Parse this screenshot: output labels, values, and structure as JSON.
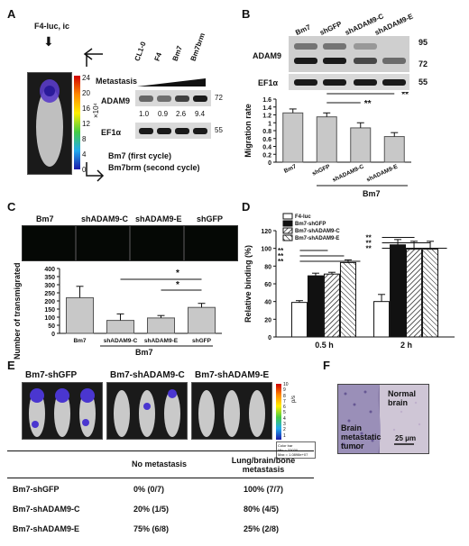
{
  "panels": {
    "A": {
      "label": "A",
      "injection": "F4-luc, ic",
      "colorbar_ticks": [
        "24",
        "20",
        "16",
        "12",
        "8",
        "4",
        "0"
      ],
      "colorbar_unit": "×10⁴",
      "lane_labels": [
        "CL1-0",
        "F4",
        "Bm7",
        "Bm7brm"
      ],
      "metastasis_label": "Metastasis",
      "blot1_label": "ADAM9",
      "blot1_kda": "72",
      "quant_values": [
        "1.0",
        "0.9",
        "2.6",
        "9.4"
      ],
      "blot2_label": "EF1α",
      "blot2_kda": "55",
      "legend_line1": "Bm7 (first cycle)",
      "legend_line2": "Bm7brm (second cycle)"
    },
    "B": {
      "label": "B",
      "lane_labels": [
        "Bm7",
        "shGFP",
        "shADAM9-C",
        "shADAM9-E"
      ],
      "blot1_label": "ADAM9",
      "blot1_kda_top": "95",
      "blot1_kda_bottom": "72",
      "blot2_label": "EF1α",
      "blot2_kda": "55",
      "sig_top": "**",
      "sig_bottom": "**",
      "group_label": "Bm7"
    },
    "C": {
      "label": "C",
      "image_labels": [
        "Bm7",
        "shADAM9-C",
        "shADAM9-E",
        "shGFP"
      ],
      "sig1": "*",
      "sig2": "*",
      "group_label": "Bm7"
    },
    "D": {
      "label": "D",
      "legend": [
        "F4-luc",
        "Bm7-shGFP",
        "Bm7-shADAM9-C",
        "Bm7-shADAM9-E"
      ],
      "sig_marks": [
        "**",
        "**",
        "**"
      ]
    },
    "E": {
      "label": "E",
      "group_titles": [
        "Bm7-shGFP",
        "Bm7-shADAM9-C",
        "Bm7-shADAM9-E"
      ],
      "colorbar_ticks": [
        "10",
        "9",
        "8",
        "7",
        "6",
        "5",
        "4",
        "3",
        "2",
        "1"
      ],
      "colorbar_unit": "p/s",
      "colorbar_note1": "Color bar",
      "colorbar_note2": "Min = 33030",
      "colorbar_note3": "Max = 1.0898e+07",
      "table_header": [
        "No metastasis",
        "Lung/brain/bone metastasis"
      ],
      "table_rows": [
        {
          "name": "Bm7-shGFP",
          "no_met": "0% (0/7)",
          "met": "100% (7/7)"
        },
        {
          "name": "Bm7-shADAM9-C",
          "no_met": "20% (1/5)",
          "met": "80% (4/5)"
        },
        {
          "name": "Bm7-shADAM9-E",
          "no_met": "75% (6/8)",
          "met": "25% (2/8)"
        }
      ]
    },
    "F": {
      "label": "F",
      "region1": "Normal brain",
      "region2": "Brain metastatic tumor",
      "scale_bar": "25 μm"
    }
  },
  "chart_data": [
    {
      "id": "B-migration",
      "type": "bar",
      "categories": [
        "Bm7",
        "shGFP",
        "shADAM9-C",
        "shADAM9-E"
      ],
      "values": [
        1.25,
        1.15,
        0.87,
        0.65
      ],
      "errors": [
        0.1,
        0.1,
        0.13,
        0.1
      ],
      "ylabel": "Migration rate",
      "ylim": [
        0,
        1.6
      ],
      "yticks": [
        "0",
        "0.2",
        "0.4",
        "0.6",
        "0.8",
        "1",
        "1.2",
        "1.4",
        "1.6"
      ],
      "bar_color": "#c8c8c8"
    },
    {
      "id": "C-transmigration",
      "type": "bar",
      "categories": [
        "Bm7",
        "shADAM9-C",
        "shADAM9-E",
        "shGFP"
      ],
      "values": [
        220,
        80,
        95,
        160
      ],
      "errors": [
        70,
        40,
        15,
        25
      ],
      "ylabel": "Number of transmigrated cells",
      "ylim": [
        0,
        400
      ],
      "yticks": [
        "0",
        "50",
        "100",
        "150",
        "200",
        "250",
        "300",
        "350",
        "400"
      ],
      "bar_color": "#c8c8c8"
    },
    {
      "id": "D-binding",
      "type": "bar",
      "categories": [
        "0.5 h",
        "2 h"
      ],
      "series": [
        {
          "name": "F4-luc",
          "values": [
            39,
            40
          ],
          "errors": [
            2,
            8
          ]
        },
        {
          "name": "Bm7-shGFP",
          "values": [
            69,
            104
          ],
          "errors": [
            3,
            6
          ]
        },
        {
          "name": "Bm7-shADAM9-C",
          "values": [
            71,
            99
          ],
          "errors": [
            2,
            9
          ]
        },
        {
          "name": "Bm7-shADAM9-E",
          "values": [
            84,
            99
          ],
          "errors": [
            3,
            9
          ]
        }
      ],
      "ylabel": "Relative binding (%)",
      "ylim": [
        0,
        120
      ],
      "yticks": [
        "0",
        "20",
        "40",
        "60",
        "80",
        "100",
        "120"
      ]
    }
  ]
}
